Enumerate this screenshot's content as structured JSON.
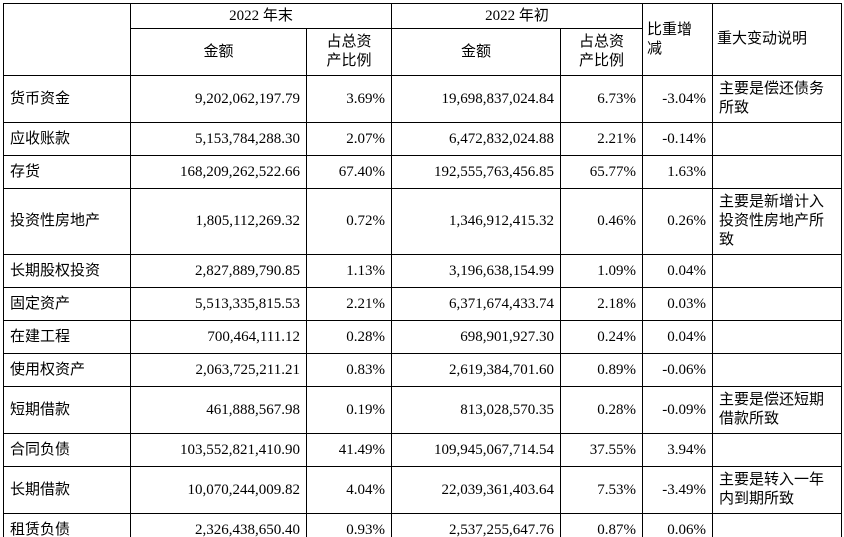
{
  "table": {
    "header": {
      "period_end": "2022 年末",
      "period_begin": "2022 年初",
      "amount": "金额",
      "ratio": "占总资\n产比例",
      "change": "比重增\n减",
      "note": "重大变动说明"
    },
    "rows": [
      {
        "item": "货币资金",
        "end_amount": "9,202,062,197.79",
        "end_ratio": "3.69%",
        "begin_amount": "19,698,837,024.84",
        "begin_ratio": "6.73%",
        "change": "-3.04%",
        "note": "主要是偿还债务所致"
      },
      {
        "item": "应收账款",
        "end_amount": "5,153,784,288.30",
        "end_ratio": "2.07%",
        "begin_amount": "6,472,832,024.88",
        "begin_ratio": "2.21%",
        "change": "-0.14%",
        "note": ""
      },
      {
        "item": "存货",
        "end_amount": "168,209,262,522.66",
        "end_ratio": "67.40%",
        "begin_amount": "192,555,763,456.85",
        "begin_ratio": "65.77%",
        "change": "1.63%",
        "note": ""
      },
      {
        "item": "投资性房地产",
        "end_amount": "1,805,112,269.32",
        "end_ratio": "0.72%",
        "begin_amount": "1,346,912,415.32",
        "begin_ratio": "0.46%",
        "change": "0.26%",
        "note": "主要是新增计入投资性房地产所致"
      },
      {
        "item": "长期股权投资",
        "end_amount": "2,827,889,790.85",
        "end_ratio": "1.13%",
        "begin_amount": "3,196,638,154.99",
        "begin_ratio": "1.09%",
        "change": "0.04%",
        "note": ""
      },
      {
        "item": "固定资产",
        "end_amount": "5,513,335,815.53",
        "end_ratio": "2.21%",
        "begin_amount": "6,371,674,433.74",
        "begin_ratio": "2.18%",
        "change": "0.03%",
        "note": ""
      },
      {
        "item": "在建工程",
        "end_amount": "700,464,111.12",
        "end_ratio": "0.28%",
        "begin_amount": "698,901,927.30",
        "begin_ratio": "0.24%",
        "change": "0.04%",
        "note": ""
      },
      {
        "item": "使用权资产",
        "end_amount": "2,063,725,211.21",
        "end_ratio": "0.83%",
        "begin_amount": "2,619,384,701.60",
        "begin_ratio": "0.89%",
        "change": "-0.06%",
        "note": ""
      },
      {
        "item": "短期借款",
        "end_amount": "461,888,567.98",
        "end_ratio": "0.19%",
        "begin_amount": "813,028,570.35",
        "begin_ratio": "0.28%",
        "change": "-0.09%",
        "note": "主要是偿还短期借款所致"
      },
      {
        "item": "合同负债",
        "end_amount": "103,552,821,410.90",
        "end_ratio": "41.49%",
        "begin_amount": "109,945,067,714.54",
        "begin_ratio": "37.55%",
        "change": "3.94%",
        "note": ""
      },
      {
        "item": "长期借款",
        "end_amount": "10,070,244,009.82",
        "end_ratio": "4.04%",
        "begin_amount": "22,039,361,403.64",
        "begin_ratio": "7.53%",
        "change": "-3.49%",
        "note": "主要是转入一年内到期所致"
      },
      {
        "item": "租赁负债",
        "end_amount": "2,326,438,650.40",
        "end_ratio": "0.93%",
        "begin_amount": "2,537,255,647.76",
        "begin_ratio": "0.87%",
        "change": "0.06%",
        "note": ""
      }
    ]
  }
}
